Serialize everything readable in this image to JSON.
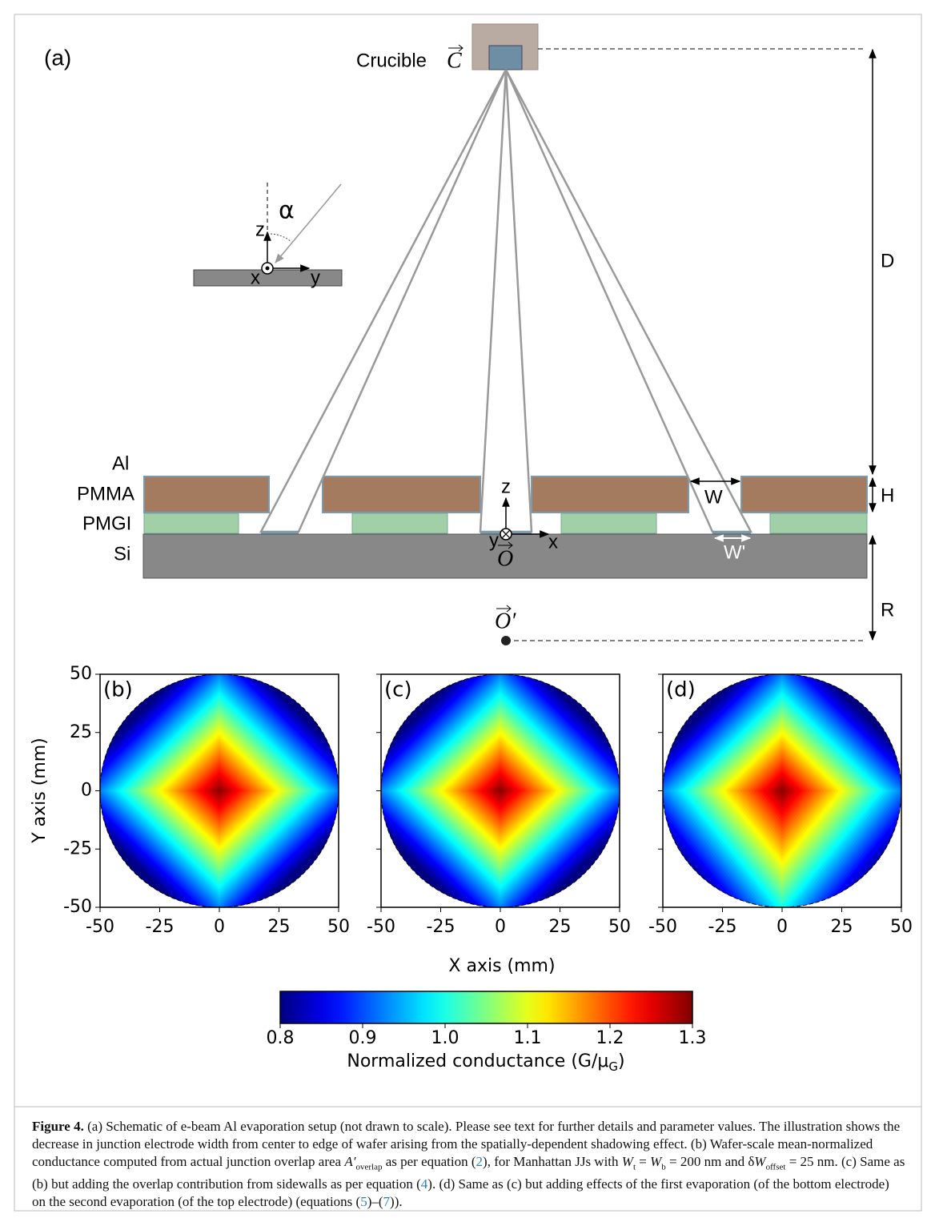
{
  "schematic": {
    "panel_label": "(a)",
    "crucible": "Crucible",
    "crucible_vector": "C",
    "angle": "α",
    "inset_axes": {
      "z": "z",
      "x": "x",
      "y": "y"
    },
    "layers": [
      "Al",
      "PMMA",
      "PMGI",
      "Si"
    ],
    "origin_axes": {
      "z": "z",
      "y": "y",
      "x": "x"
    },
    "origin": "O",
    "origin_prime": "O′",
    "dims": {
      "D": "D",
      "H": "H",
      "R": "R",
      "W": "W",
      "W_prime": "W'"
    }
  },
  "maps": {
    "x_label": "X axis (mm)",
    "y_label": "Y axis (mm)",
    "panels": [
      {
        "label": "(b)",
        "xlim": [
          -50,
          50
        ],
        "ylim": [
          -50,
          50
        ],
        "xticks": [
          -50,
          -25,
          0,
          25,
          50
        ],
        "yticks": [
          -50,
          -25,
          0,
          25,
          50
        ]
      },
      {
        "label": "(c)",
        "xlim": [
          -50,
          50
        ],
        "ylim": [
          -50,
          50
        ],
        "xticks": [
          -50,
          -25,
          0,
          25,
          50
        ],
        "yticks": [
          -50,
          -25,
          0,
          25,
          50
        ]
      },
      {
        "label": "(d)",
        "xlim": [
          -50,
          50
        ],
        "ylim": [
          -50,
          50
        ],
        "xticks": [
          -50,
          -25,
          0,
          25,
          50
        ],
        "yticks": [
          -50,
          -25,
          0,
          25,
          50
        ]
      }
    ],
    "colorbar": {
      "colormap": "jet",
      "clim": [
        0.8,
        1.3
      ],
      "ticks": [
        0.8,
        0.9,
        {
          "value": 1,
          "label": "1.0"
        },
        1.1,
        1.2,
        1.3
      ],
      "label": "Normalized conductance (G/μ",
      "label_sub": "G",
      "label_end": ")"
    }
  },
  "caption": [
    {
      "text": "Figure 4.",
      "bold": true
    },
    {
      "text": " (a) Schematic of e-beam Al evaporation setup (not drawn to scale). Please see text for further details and parameter values. The illustration shows the decrease in junction electrode width from center to edge of wafer arising from the spatially-dependent shadowing effect. (b) Wafer-scale mean-normalized conductance computed from actual junction overlap area "
    },
    {
      "text": "A′",
      "italic": true
    },
    {
      "text": "overlap",
      "sub": true
    },
    {
      "text": " as per equation ("
    },
    {
      "text": "2",
      "link": true
    },
    {
      "text": "), for Manhattan JJs with "
    },
    {
      "text": "W",
      "italic": true
    },
    {
      "text": "t",
      "sub": true
    },
    {
      "text": " = "
    },
    {
      "text": "W",
      "italic": true
    },
    {
      "text": "b",
      "sub": true
    },
    {
      "text": " = 200 nm and δ"
    },
    {
      "text": "W",
      "italic": true
    },
    {
      "text": "offset",
      "sub": true
    },
    {
      "text": " = 25 nm. (c) Same as (b) but adding the overlap contribution from sidewalls as per equation ("
    },
    {
      "text": "4",
      "link": true
    },
    {
      "text": "). (d) Same as (c) but adding effects of the first evaporation (of the bottom electrode) on the second evaporation (of the top electrode) (equations ("
    },
    {
      "text": "5",
      "link": true
    },
    {
      "text": ")–("
    },
    {
      "text": "7",
      "link": true
    },
    {
      "text": "))."
    }
  ]
}
